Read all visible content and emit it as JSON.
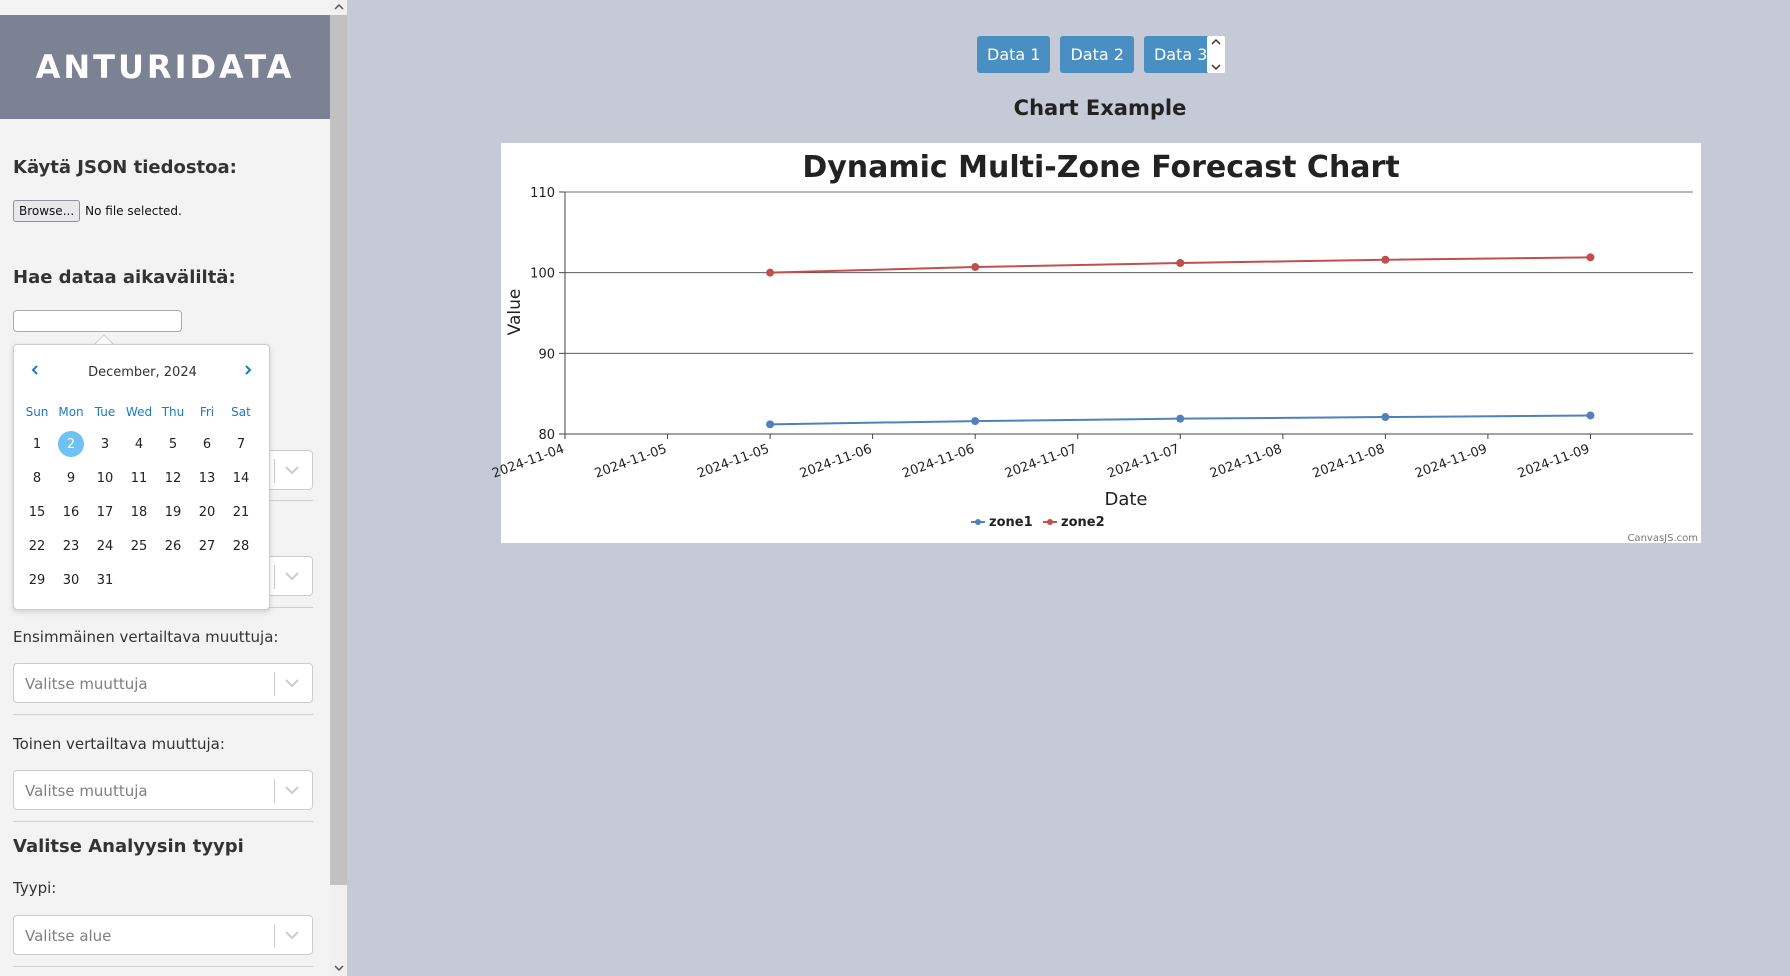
{
  "sidebar": {
    "app_title": "ANTURIDATA",
    "json_section_heading": "Käytä JSON tiedostoa:",
    "browse_label": "Browse...",
    "file_status": "No file selected.",
    "range_section_heading": "Hae dataa aikaväliltä:",
    "first_variable_label": "Ensimmäinen vertailtava muuttuja:",
    "first_variable_placeholder": "Valitse muuttuja",
    "second_variable_label": "Toinen vertailtava muuttuja:",
    "second_variable_placeholder": "Valitse muuttuja",
    "analysis_section_heading": "Valitse Analyysin tyypi",
    "type_label": "Tyypi:",
    "type_placeholder": "Valitse alue"
  },
  "calendar": {
    "month_title": "December, 2024",
    "weekdays": [
      "Sun",
      "Mon",
      "Tue",
      "Wed",
      "Thu",
      "Fri",
      "Sat"
    ],
    "first_weekday_offset": 0,
    "days_in_month": 31,
    "selected_day": 2
  },
  "main": {
    "data_buttons": [
      "Data 1",
      "Data 2",
      "Data 3"
    ],
    "chart_heading": "Chart Example"
  },
  "colors": {
    "button": "#4a8fc1",
    "zone1": "#4f81bc",
    "zone2": "#c0504e",
    "header_bg": "#7c8193",
    "page_bg": "#c5cad6"
  },
  "chart_data": {
    "type": "line",
    "title": "Dynamic Multi-Zone Forecast Chart",
    "xlabel": "Date",
    "ylabel": "Value",
    "ylim": [
      80,
      110
    ],
    "yticks": [
      80,
      90,
      100,
      110
    ],
    "xlim": [
      "2024-11-04",
      "2024-11-09 12:00"
    ],
    "xtick_labels": [
      "2024-11-04",
      "2024-11-05",
      "2024-11-05",
      "2024-11-06",
      "2024-11-06",
      "2024-11-07",
      "2024-11-07",
      "2024-11-08",
      "2024-11-08",
      "2024-11-09",
      "2024-11-09"
    ],
    "x": [
      "2024-11-05",
      "2024-11-06",
      "2024-11-07",
      "2024-11-08",
      "2024-11-09"
    ],
    "series": [
      {
        "name": "zone1",
        "values": [
          81.2,
          81.6,
          81.9,
          82.1,
          82.3
        ]
      },
      {
        "name": "zone2",
        "values": [
          100.0,
          100.7,
          101.2,
          101.6,
          101.9
        ]
      }
    ],
    "legend_position": "bottom-center",
    "credit": "CanvasJS.com",
    "grid": true
  }
}
